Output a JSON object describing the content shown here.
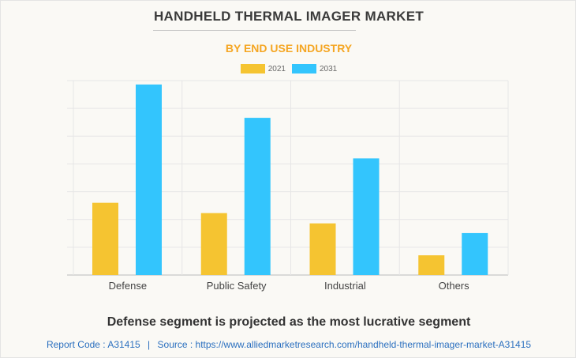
{
  "title": "HANDHELD THERMAL IMAGER MARKET",
  "subtitle": "BY END USE INDUSTRY",
  "insight": "Defense segment is projected as the most lucrative segment",
  "footer": {
    "report_code": "Report Code : A31415",
    "separator": "|",
    "source": "Source : https://www.alliedmarketresearch.com/handheld-thermal-imager-market-A31415"
  },
  "chart_data": {
    "type": "bar",
    "categories": [
      "Defense",
      "Public Safety",
      "Industrial",
      "Others"
    ],
    "series": [
      {
        "name": "2021",
        "color": "#f5c431",
        "values": [
          2.6,
          2.23,
          1.86,
          0.71
        ]
      },
      {
        "name": "2031",
        "color": "#33c5fd",
        "values": [
          6.86,
          5.66,
          4.2,
          1.51
        ]
      }
    ],
    "ylim": [
      0,
      7
    ],
    "y_tick_labels_shown": false,
    "grid": true,
    "legend": "top-center",
    "xlabel": "",
    "ylabel": ""
  }
}
